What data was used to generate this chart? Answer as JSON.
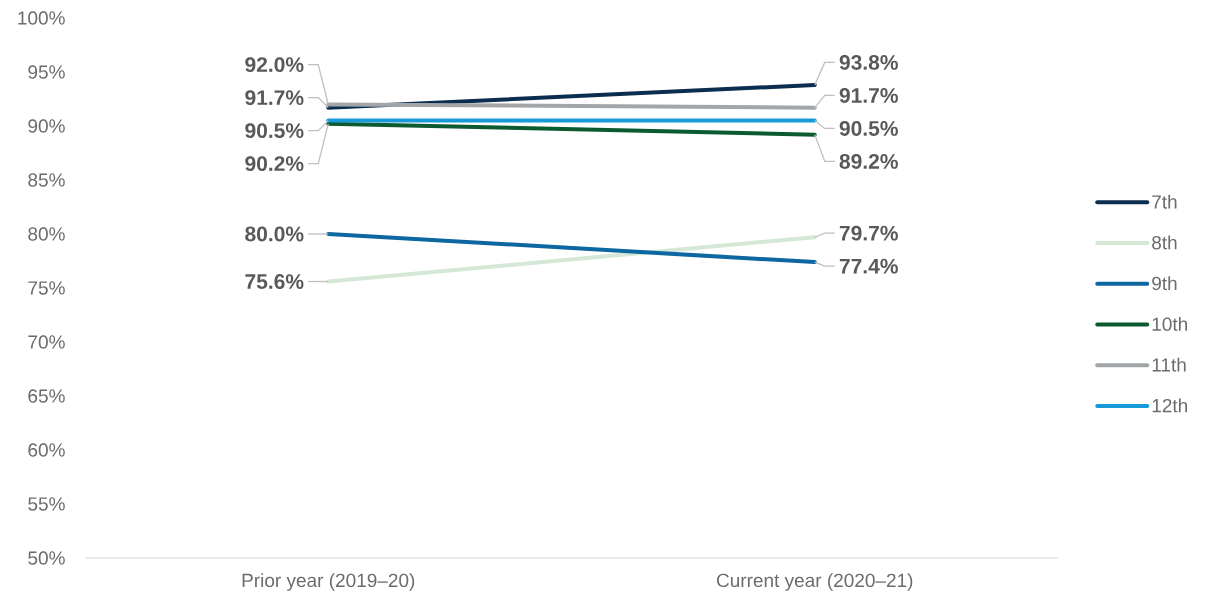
{
  "chart_data": {
    "type": "line",
    "categories": [
      "Prior year (2019–20)",
      "Current year (2020–21)"
    ],
    "series": [
      {
        "name": "7th",
        "color": "#0b2d4f",
        "values": [
          91.7,
          93.8
        ],
        "value_labels": [
          "91.7%",
          "93.8%"
        ]
      },
      {
        "name": "8th",
        "color": "#d5e8d6",
        "values": [
          75.6,
          79.7
        ],
        "value_labels": [
          "75.6%",
          "79.7%"
        ]
      },
      {
        "name": "9th",
        "color": "#0d67a0",
        "values": [
          80.0,
          77.4
        ],
        "value_labels": [
          "80.0%",
          "77.4%"
        ]
      },
      {
        "name": "10th",
        "color": "#0c5a30",
        "values": [
          90.2,
          89.2
        ],
        "value_labels": [
          "90.2%",
          "89.2%"
        ]
      },
      {
        "name": "11th",
        "color": "#a2a6a9",
        "values": [
          92.0,
          91.7
        ],
        "value_labels": [
          "92.0%",
          "91.7%"
        ]
      },
      {
        "name": "12th",
        "color": "#169bd8",
        "values": [
          90.5,
          90.5
        ],
        "value_labels": [
          "90.5%",
          "90.5%"
        ]
      }
    ],
    "ylim": [
      50,
      100
    ],
    "yticks": [
      {
        "value": 50,
        "label": "50%"
      },
      {
        "value": 55,
        "label": "55%"
      },
      {
        "value": 60,
        "label": "60%"
      },
      {
        "value": 65,
        "label": "65%"
      },
      {
        "value": 70,
        "label": "70%"
      },
      {
        "value": 75,
        "label": "75%"
      },
      {
        "value": 80,
        "label": "80%"
      },
      {
        "value": 85,
        "label": "85%"
      },
      {
        "value": 90,
        "label": "90%"
      },
      {
        "value": 95,
        "label": "95%"
      },
      {
        "value": 100,
        "label": "100%"
      }
    ],
    "legend": "right"
  }
}
